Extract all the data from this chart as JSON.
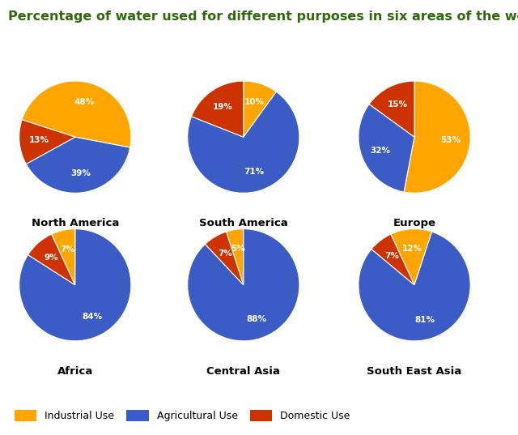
{
  "title": "Percentage of water used for different purposes in six areas of the world.",
  "title_color": "#2d6a0a",
  "title_fontsize": 11.5,
  "regions": [
    {
      "name": "North America",
      "industrial": 48,
      "agricultural": 39,
      "domestic": 13
    },
    {
      "name": "South America",
      "industrial": 10,
      "agricultural": 71,
      "domestic": 19
    },
    {
      "name": "Europe",
      "industrial": 53,
      "agricultural": 32,
      "domestic": 15
    },
    {
      "name": "Africa",
      "industrial": 7,
      "agricultural": 84,
      "domestic": 9
    },
    {
      "name": "Central Asia",
      "industrial": 5,
      "agricultural": 88,
      "domestic": 7
    },
    {
      "name": "South East Asia",
      "industrial": 12,
      "agricultural": 81,
      "domestic": 7
    }
  ],
  "colors": {
    "industrial": "#FFA500",
    "agricultural": "#3B5CC4",
    "domestic": "#CC3300"
  },
  "label_color": "#ffffff",
  "label_fontsize": 7.5,
  "region_label_fontsize": 9.5,
  "background_color": "#ffffff",
  "legend_labels": [
    "Industrial Use",
    "Agricultural Use",
    "Domestic Use"
  ],
  "legend_colors": [
    "#FFA500",
    "#3B5CC4",
    "#CC3300"
  ],
  "startangles": [
    162,
    90,
    90,
    115,
    108,
    115
  ]
}
